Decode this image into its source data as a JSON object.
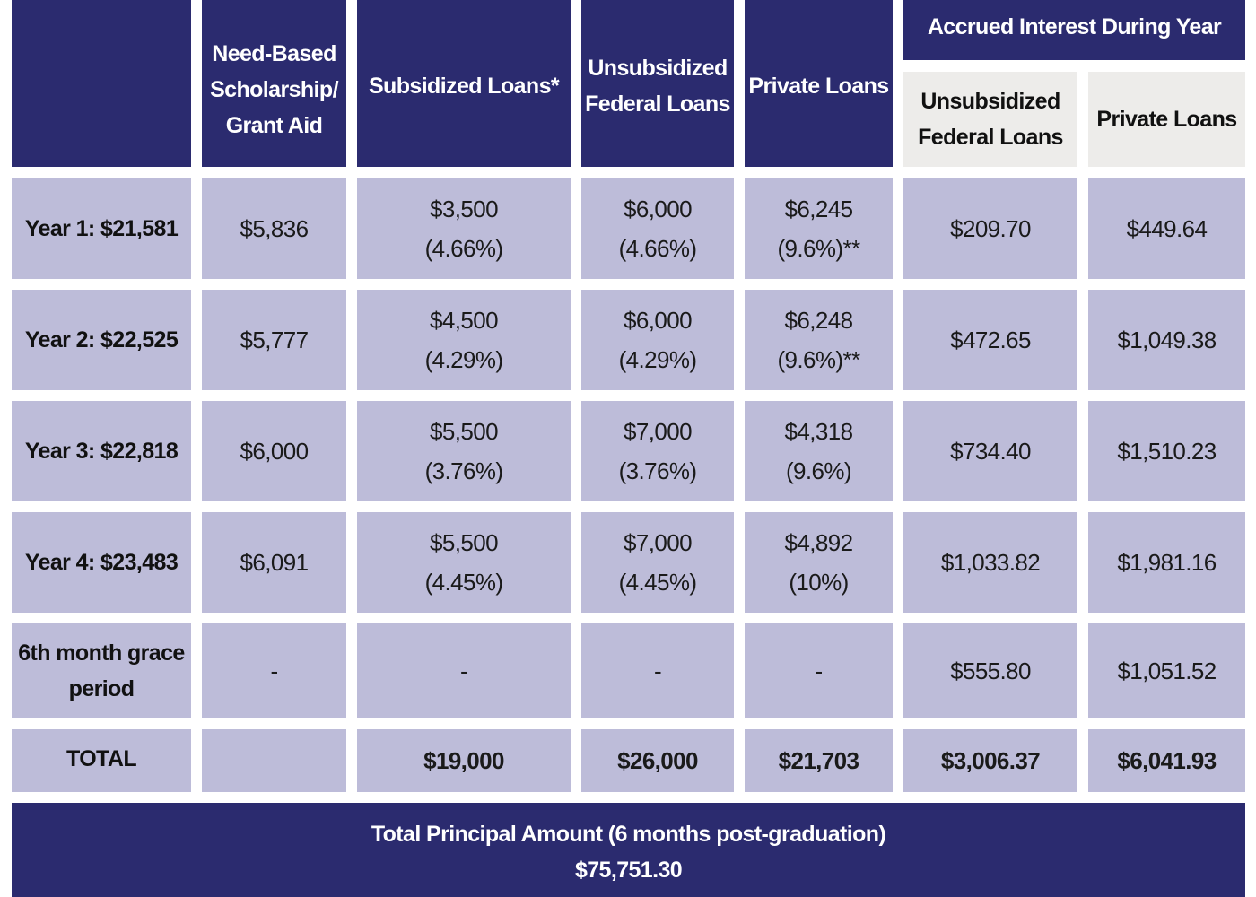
{
  "header": {
    "blank": "",
    "need_based": [
      "Need-Based",
      "Scholarship/",
      "Grant Aid"
    ],
    "subsidized": [
      "Subsidized Loans*"
    ],
    "unsubsidized": [
      "Unsubsidized",
      "Federal Loans"
    ],
    "private": [
      "Private Loans"
    ],
    "accrued_interest": "Accrued Interest During Year",
    "accrued_unsubsidized": [
      "Unsubsidized",
      "Federal Loans"
    ],
    "accrued_private": [
      "Private Loans"
    ]
  },
  "rows": [
    {
      "label": [
        "Year 1: $21,581"
      ],
      "need_based": [
        "$5,836"
      ],
      "subsidized": [
        "$3,500",
        "(4.66%)"
      ],
      "unsubsidized": [
        "$6,000",
        "(4.66%)"
      ],
      "private": [
        "$6,245",
        "(9.6%)**"
      ],
      "accrued_unsubsidized": [
        "$209.70"
      ],
      "accrued_private": [
        "$449.64"
      ]
    },
    {
      "label": [
        "Year 2: $22,525"
      ],
      "need_based": [
        "$5,777"
      ],
      "subsidized": [
        "$4,500",
        "(4.29%)"
      ],
      "unsubsidized": [
        "$6,000",
        "(4.29%)"
      ],
      "private": [
        "$6,248",
        "(9.6%)**"
      ],
      "accrued_unsubsidized": [
        "$472.65"
      ],
      "accrued_private": [
        "$1,049.38"
      ]
    },
    {
      "label": [
        "Year 3: $22,818"
      ],
      "need_based": [
        "$6,000"
      ],
      "subsidized": [
        "$5,500",
        "(3.76%)"
      ],
      "unsubsidized": [
        "$7,000",
        "(3.76%)"
      ],
      "private": [
        "$4,318",
        "(9.6%)"
      ],
      "accrued_unsubsidized": [
        "$734.40"
      ],
      "accrued_private": [
        "$1,510.23"
      ]
    },
    {
      "label": [
        "Year 4: $23,483"
      ],
      "need_based": [
        "$6,091"
      ],
      "subsidized": [
        "$5,500",
        "(4.45%)"
      ],
      "unsubsidized": [
        "$7,000",
        "(4.45%)"
      ],
      "private": [
        "$4,892",
        "(10%)"
      ],
      "accrued_unsubsidized": [
        "$1,033.82"
      ],
      "accrued_private": [
        "$1,981.16"
      ]
    },
    {
      "label": [
        "6th month grace",
        "period"
      ],
      "need_based": [
        "-"
      ],
      "subsidized": [
        "-"
      ],
      "unsubsidized": [
        "-"
      ],
      "private": [
        "-"
      ],
      "accrued_unsubsidized": [
        "$555.80"
      ],
      "accrued_private": [
        "$1,051.52"
      ]
    }
  ],
  "total": {
    "label": "TOTAL",
    "need_based": "",
    "subsidized": "$19,000",
    "unsubsidized": "$26,000",
    "private": "$21,703",
    "accrued_unsubsidized": "$3,006.37",
    "accrued_private": "$6,041.93"
  },
  "footer": {
    "title": "Total Principal Amount (6 months post-graduation)",
    "amount": "$75,751.30"
  },
  "colors": {
    "header_navy": "#2b2b6f",
    "cell_lavender": "#bdbcd9",
    "subheader_gray": "#edecea"
  }
}
